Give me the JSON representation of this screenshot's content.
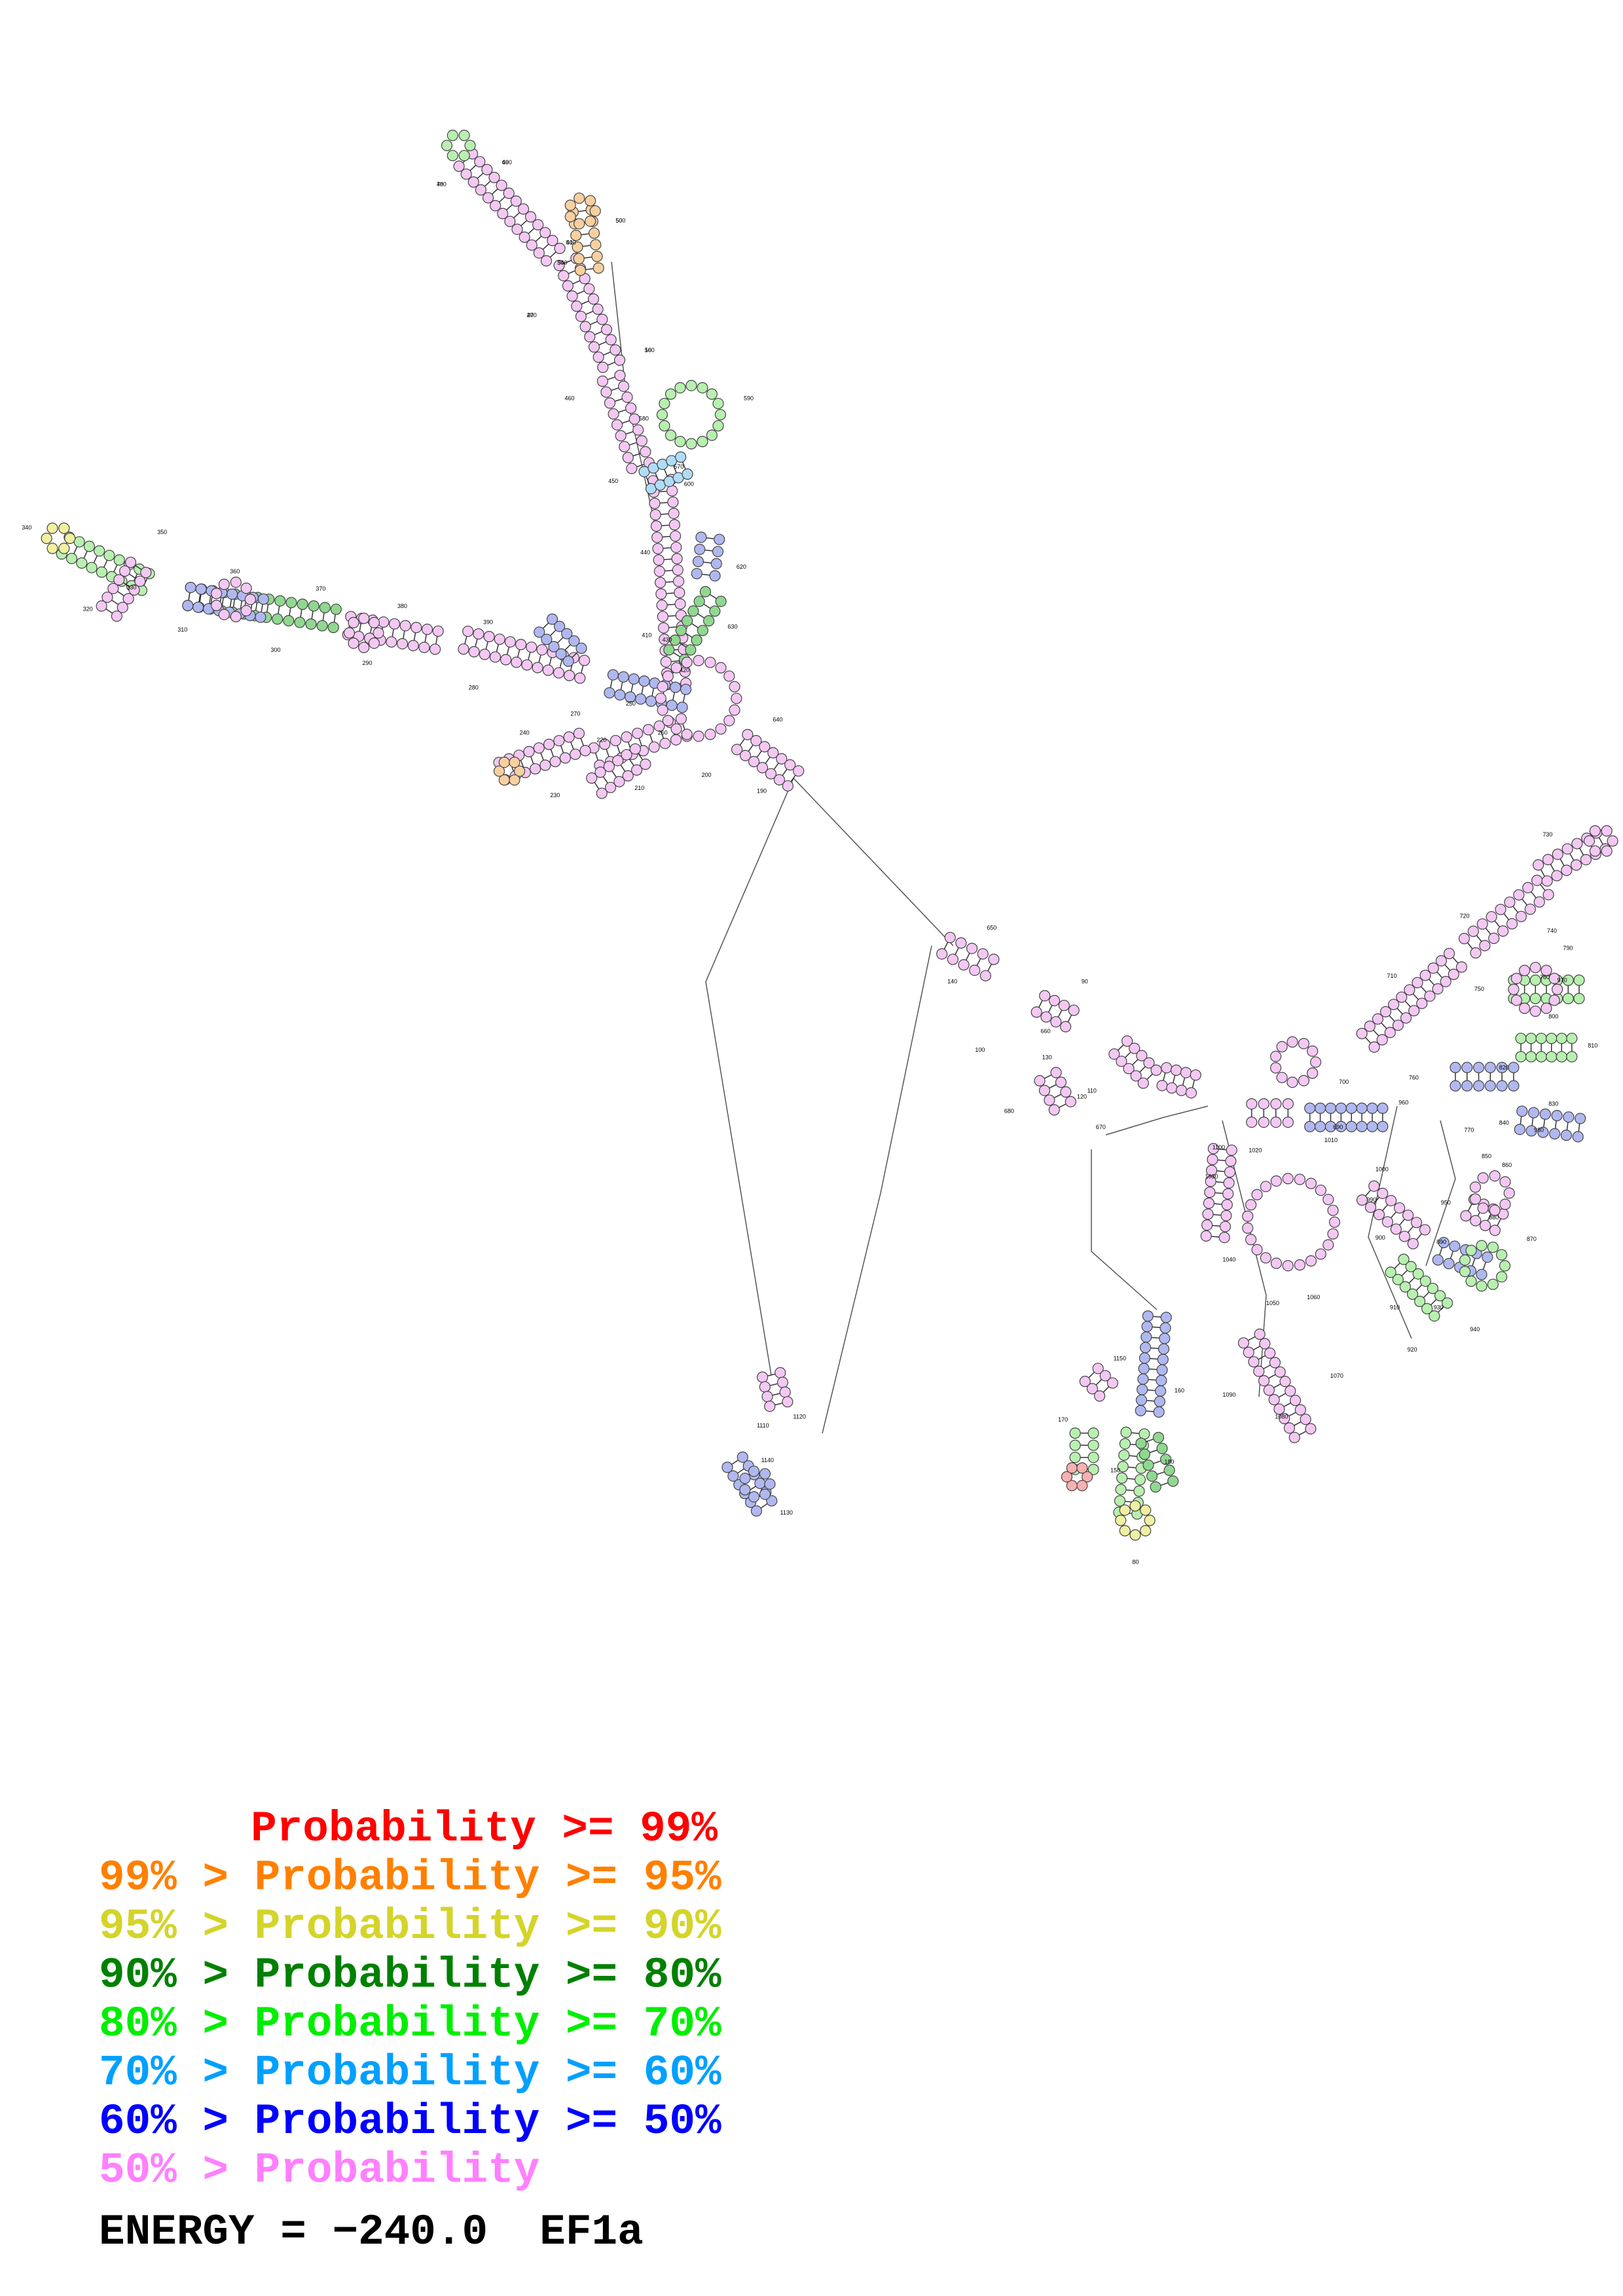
{
  "structure_labels": [
    "480",
    "490",
    "500",
    "510",
    "540",
    "470",
    "560",
    "460",
    "580",
    "590",
    "450",
    "570",
    "600",
    "440",
    "620",
    "430",
    "630",
    "340",
    "350",
    "330",
    "360",
    "320",
    "310",
    "370",
    "300",
    "380",
    "290",
    "390",
    "280",
    "410",
    "420",
    "250",
    "270",
    "260",
    "240",
    "230",
    "220",
    "210",
    "200",
    "640",
    "190",
    "650",
    "140",
    "660",
    "130",
    "120",
    "110",
    "100",
    "670",
    "90",
    "680",
    "690",
    "700",
    "710",
    "720",
    "730",
    "740",
    "750",
    "760",
    "770",
    "780",
    "790",
    "800",
    "810",
    "820",
    "830",
    "840",
    "850",
    "860",
    "870",
    "880",
    "890",
    "900",
    "910",
    "920",
    "930",
    "940",
    "950",
    "960",
    "970",
    "980",
    "990",
    "1000",
    "1010",
    "1020",
    "1030",
    "1040",
    "1050",
    "1060",
    "1070",
    "1080",
    "1090",
    "1100",
    "1110",
    "1120",
    "1130",
    "1140",
    "1150",
    "170",
    "150",
    "180",
    "160",
    "80",
    "70",
    "60",
    "50",
    "40",
    "30",
    "20",
    "10"
  ],
  "legend": [
    {
      "text": "Probability >= 99%",
      "color": "#ff0000"
    },
    {
      "text": "99% > Probability >= 95%",
      "color": "#ff8000"
    },
    {
      "text": "95% > Probability >= 90%",
      "color": "#d4d42a"
    },
    {
      "text": "90% > Probability >= 80%",
      "color": "#008000"
    },
    {
      "text": "80% > Probability >= 70%",
      "color": "#00ee00"
    },
    {
      "text": "70% > Probability >= 60%",
      "color": "#00a0ff"
    },
    {
      "text": "60% > Probability >= 50%",
      "color": "#0000ff"
    },
    {
      "text": "50% > Probability",
      "color": "#ff80ff"
    }
  ],
  "footer": "ENERGY = −240.0  EF1a"
}
